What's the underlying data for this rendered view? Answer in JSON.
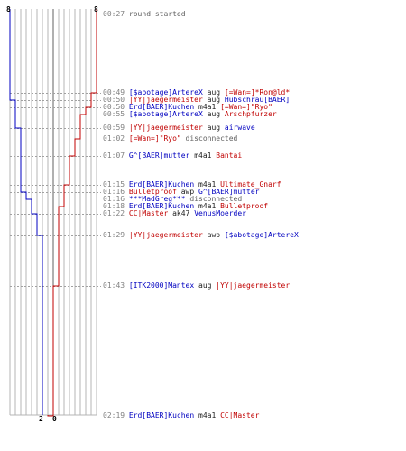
{
  "colors": {
    "blue_team": "#0000c0",
    "red_team": "#c00000",
    "grid": "#b4b4b4",
    "center": "#606060",
    "time": "#808080",
    "note": "#606060"
  },
  "scores": {
    "blue_start": "8",
    "red_start": "8",
    "blue_end": "2",
    "red_end": "0"
  },
  "events": [
    {
      "time": "00:27",
      "msg": "round started"
    },
    {
      "time": "00:49",
      "killer": "[$abotage]ArtereX",
      "kteam": "blue",
      "weapon": "aug",
      "victim": "[=Wan=]*Ron@ld*",
      "vteam": "red",
      "vsig": 0
    },
    {
      "time": "00:50",
      "killer": "|YY|jaegermeister",
      "kteam": "red",
      "weapon": "aug",
      "victim": "Hubschrau[BAER]",
      "vteam": "blue",
      "vsig": 0
    },
    {
      "time": "00:50",
      "killer": "Erd[BAER]Kuchen",
      "kteam": "blue",
      "weapon": "m4a1",
      "victim": "[=Wan=]\"Ryo\"",
      "vteam": "red",
      "vsig": 0
    },
    {
      "time": "00:55",
      "killer": "[$abotage]ArtereX",
      "kteam": "blue",
      "weapon": "aug",
      "victim": "Arschpfurzer",
      "vteam": "red",
      "vsig": 1
    },
    {
      "time": "00:59",
      "killer": "|YY|jaegermeister",
      "kteam": "red",
      "weapon": "aug",
      "victim": "airwave",
      "vteam": "blue",
      "vsig": 1
    },
    {
      "time": "01:02",
      "player": "[=Wan=]\"Ryo\"",
      "pteam": "red",
      "msg": "disconnected"
    },
    {
      "time": "01:07",
      "killer": "G^[BAER]mutter",
      "kteam": "blue",
      "weapon": "m4a1",
      "victim": "Bantai",
      "vteam": "red",
      "vsig": 1
    },
    {
      "time": "01:15",
      "killer": "Erd[BAER]Kuchen",
      "kteam": "blue",
      "weapon": "m4a1",
      "victim": "Ultimate_Gnarf",
      "vteam": "red",
      "vsig": 1
    },
    {
      "time": "01:16",
      "killer": "Bulletproof",
      "kteam": "red",
      "weapon": "awp",
      "victim": "G^[BAER]mutter",
      "vteam": "blue",
      "vsig": 1
    },
    {
      "time": "01:16",
      "player": "***MadGreg***",
      "pteam": "blue",
      "msg": "disconnected"
    },
    {
      "time": "01:18",
      "killer": "Erd[BAER]Kuchen",
      "kteam": "blue",
      "weapon": "m4a1",
      "victim": "Bulletproof",
      "vteam": "red",
      "vsig": 1
    },
    {
      "time": "01:22",
      "killer": "CC|Master",
      "kteam": "red",
      "weapon": "ak47",
      "victim": "VenusMoerder",
      "vteam": "blue",
      "vsig": 1
    },
    {
      "time": "01:29",
      "killer": "|YY|jaegermeister",
      "kteam": "red",
      "weapon": "awp",
      "victim": "[$abotage]ArtereX",
      "vteam": "blue",
      "vsig": 1
    },
    {
      "time": "01:43",
      "killer": "[ITK2000]Mantex",
      "kteam": "blue",
      "weapon": "aug",
      "victim": "|YY|jaegermeister",
      "vteam": "red",
      "vsig": 1
    },
    {
      "time": "02:19",
      "killer": "Erd[BAER]Kuchen",
      "kteam": "blue",
      "weapon": "m4a1",
      "victim": "CC|Master",
      "vteam": "red",
      "vsig": 1
    }
  ]
}
